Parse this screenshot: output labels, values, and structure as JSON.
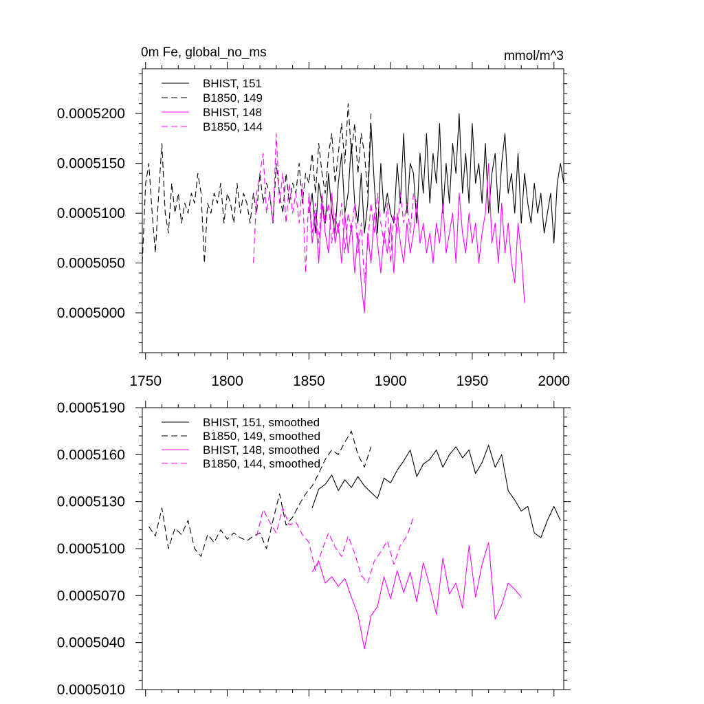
{
  "chart_data": [
    {
      "type": "line",
      "title_left": "0m Fe, global_no_ms",
      "title_right": "mmol/m^3",
      "xlim": [
        1748,
        2006
      ],
      "ylim": [
        0.000496,
        0.0005245
      ],
      "xticks": [
        1750,
        1800,
        1850,
        1900,
        1950,
        2000
      ],
      "xtick_labels": [
        "1750",
        "1800",
        "1850",
        "1900",
        "1950",
        "2000"
      ],
      "yticks": [
        0.0005,
        0.000505,
        0.00051,
        0.000515,
        0.00052
      ],
      "ytick_labels": [
        "0.0005000",
        "0.0005050",
        "0.0005100",
        "0.0005150",
        "0.0005200"
      ],
      "grid": false,
      "legend_position": "top-left",
      "series": [
        {
          "name": "BHIST, 151",
          "color": "#000000",
          "dash": "solid",
          "x": [
            1850,
            1852,
            1854,
            1856,
            1858,
            1860,
            1862,
            1864,
            1866,
            1868,
            1870,
            1872,
            1874,
            1876,
            1878,
            1880,
            1882,
            1884,
            1886,
            1888,
            1890,
            1892,
            1894,
            1896,
            1898,
            1900,
            1902,
            1904,
            1906,
            1908,
            1910,
            1912,
            1914,
            1916,
            1918,
            1920,
            1922,
            1924,
            1926,
            1928,
            1930,
            1932,
            1934,
            1936,
            1938,
            1940,
            1942,
            1944,
            1946,
            1948,
            1950,
            1952,
            1954,
            1956,
            1958,
            1960,
            1962,
            1964,
            1966,
            1968,
            1970,
            1972,
            1974,
            1976,
            1978,
            1980,
            1982,
            1984,
            1986,
            1988,
            1990,
            1992,
            1994,
            1996,
            1998,
            2000,
            2002,
            2004,
            2006
          ],
          "values": [
            0.00051,
            0.000512,
            0.000508,
            0.000513,
            0.000511,
            0.000509,
            0.000514,
            0.00051,
            0.000508,
            0.000513,
            0.000516,
            0.00051,
            0.000512,
            0.000517,
            0.000511,
            0.000509,
            0.000514,
            0.000508,
            0.000511,
            0.000519,
            0.000513,
            0.000508,
            0.000515,
            0.00051,
            0.000512,
            0.00051,
            0.000509,
            0.000515,
            0.000511,
            0.000518,
            0.00051,
            0.000515,
            0.000514,
            0.000509,
            0.000516,
            0.000512,
            0.000518,
            0.000511,
            0.000516,
            0.000513,
            0.000519,
            0.00051,
            0.000515,
            0.000511,
            0.000517,
            0.000514,
            0.00052,
            0.000512,
            0.000516,
            0.000511,
            0.000519,
            0.000513,
            0.000515,
            0.000511,
            0.000517,
            0.00051,
            0.000514,
            0.000516,
            0.00051,
            0.000515,
            0.000518,
            0.000512,
            0.000514,
            0.00051,
            0.000516,
            0.000509,
            0.000514,
            0.000511,
            0.000509,
            0.000513,
            0.00051,
            0.000512,
            0.000508,
            0.00051,
            0.000512,
            0.000507,
            0.000513,
            0.000515,
            0.000513
          ]
        },
        {
          "name": "B1850, 149",
          "color": "#000000",
          "dash": "dash",
          "x": [
            1748,
            1750,
            1752,
            1754,
            1756,
            1758,
            1760,
            1762,
            1764,
            1766,
            1768,
            1770,
            1772,
            1774,
            1776,
            1778,
            1780,
            1782,
            1784,
            1786,
            1788,
            1790,
            1792,
            1794,
            1796,
            1798,
            1800,
            1802,
            1804,
            1806,
            1808,
            1810,
            1812,
            1814,
            1816,
            1818,
            1820,
            1822,
            1824,
            1826,
            1828,
            1830,
            1832,
            1834,
            1836,
            1838,
            1840,
            1842,
            1844,
            1846,
            1848,
            1850,
            1852,
            1854,
            1856,
            1858,
            1860,
            1862,
            1864,
            1866,
            1868,
            1870,
            1872,
            1874,
            1876,
            1878,
            1880,
            1882,
            1884,
            1886,
            1888
          ],
          "values": [
            0.000505,
            0.000513,
            0.000515,
            0.00051,
            0.000506,
            0.000512,
            0.000517,
            0.00051,
            0.000508,
            0.000513,
            0.00051,
            0.000512,
            0.000509,
            0.000511,
            0.00051,
            0.000512,
            0.000511,
            0.000514,
            0.000512,
            0.000505,
            0.000511,
            0.00051,
            0.000512,
            0.000511,
            0.000513,
            0.000509,
            0.000512,
            0.000511,
            0.000509,
            0.000513,
            0.00051,
            0.000512,
            0.000511,
            0.000509,
            0.000512,
            0.00051,
            0.000514,
            0.000511,
            0.000513,
            0.000512,
            0.000509,
            0.000515,
            0.000512,
            0.00051,
            0.000514,
            0.000511,
            0.000513,
            0.000512,
            0.000515,
            0.000511,
            0.000514,
            0.000513,
            0.000516,
            0.000512,
            0.000517,
            0.000514,
            0.000512,
            0.000516,
            0.000518,
            0.000513,
            0.000516,
            0.000519,
            0.000515,
            0.000521,
            0.000516,
            0.000519,
            0.000514,
            0.000518,
            0.000516,
            0.000512,
            0.00052
          ]
        },
        {
          "name": "BHIST, 148",
          "color": "#ff00ff",
          "dash": "solid",
          "x": [
            1850,
            1852,
            1854,
            1856,
            1858,
            1860,
            1862,
            1864,
            1866,
            1868,
            1870,
            1872,
            1874,
            1876,
            1878,
            1880,
            1882,
            1884,
            1886,
            1888,
            1890,
            1892,
            1894,
            1896,
            1898,
            1900,
            1902,
            1904,
            1906,
            1908,
            1910,
            1912,
            1914,
            1916,
            1918,
            1920,
            1922,
            1924,
            1926,
            1928,
            1930,
            1932,
            1934,
            1936,
            1938,
            1940,
            1942,
            1944,
            1946,
            1948,
            1950,
            1952,
            1954,
            1956,
            1958,
            1960,
            1962,
            1964,
            1966,
            1968,
            1970,
            1972,
            1974,
            1976,
            1978,
            1980,
            1982
          ],
          "values": [
            0.000512,
            0.000507,
            0.00051,
            0.000505,
            0.000511,
            0.000508,
            0.000506,
            0.000512,
            0.000507,
            0.000509,
            0.000505,
            0.00051,
            0.000506,
            0.000509,
            0.000504,
            0.000508,
            0.000503,
            0.0005,
            0.000508,
            0.000505,
            0.00051,
            0.000507,
            0.000504,
            0.000508,
            0.000506,
            0.000509,
            0.000504,
            0.00051,
            0.000507,
            0.000505,
            0.000509,
            0.000506,
            0.000508,
            0.000511,
            0.000507,
            0.000509,
            0.000506,
            0.000508,
            0.000505,
            0.000509,
            0.000507,
            0.000511,
            0.000506,
            0.000508,
            0.00051,
            0.000505,
            0.000512,
            0.000508,
            0.000506,
            0.00051,
            0.000507,
            0.000509,
            0.000505,
            0.000508,
            0.00051,
            0.000515,
            0.000507,
            0.000509,
            0.000505,
            0.000511,
            0.000506,
            0.000509,
            0.000505,
            0.000503,
            0.000509,
            0.000506,
            0.000501
          ]
        },
        {
          "name": "B1850, 144",
          "color": "#ff00ff",
          "dash": "dash",
          "x": [
            1816,
            1818,
            1820,
            1822,
            1824,
            1826,
            1828,
            1830,
            1832,
            1834,
            1836,
            1838,
            1840,
            1842,
            1844,
            1846,
            1848,
            1850,
            1852,
            1854,
            1856,
            1858,
            1860,
            1862,
            1864,
            1866,
            1868,
            1870,
            1872,
            1874,
            1876,
            1878,
            1880,
            1882,
            1884,
            1886,
            1888,
            1890,
            1892,
            1894,
            1896,
            1898,
            1900,
            1902,
            1904,
            1906,
            1908,
            1910,
            1912,
            1914,
            1916
          ],
          "values": [
            0.000505,
            0.000512,
            0.000514,
            0.000516,
            0.00051,
            0.000512,
            0.000509,
            0.000518,
            0.000511,
            0.000514,
            0.000509,
            0.000513,
            0.00051,
            0.000512,
            0.000509,
            0.000513,
            0.000504,
            0.000512,
            0.000508,
            0.000511,
            0.000507,
            0.000512,
            0.000509,
            0.000511,
            0.000507,
            0.00051,
            0.000508,
            0.000511,
            0.000506,
            0.00051,
            0.000508,
            0.000511,
            0.000506,
            0.000509,
            0.000503,
            0.000507,
            0.000511,
            0.000508,
            0.000512,
            0.000509,
            0.000507,
            0.000511,
            0.000505,
            0.00051,
            0.000508,
            0.000512,
            0.000509,
            0.000511,
            0.000508,
            0.000512,
            0.000511
          ]
        }
      ]
    },
    {
      "type": "line",
      "xlim": [
        1748,
        2006
      ],
      "ylim": [
        0.000501,
        0.000519
      ],
      "xticks": [
        1750,
        1800,
        1850,
        1900,
        1950,
        2000
      ],
      "yticks": [
        0.000501,
        0.000504,
        0.000507,
        0.00051,
        0.000513,
        0.000516,
        0.000519
      ],
      "ytick_labels": [
        "0.0005010",
        "0.0005040",
        "0.0005070",
        "0.0005100",
        "0.0005130",
        "0.0005160",
        "0.0005190"
      ],
      "grid": false,
      "legend_position": "top-left",
      "series": [
        {
          "name": "BHIST, 151, smoothed",
          "color": "#000000",
          "dash": "solid",
          "x": [
            1852,
            1856,
            1860,
            1864,
            1868,
            1872,
            1876,
            1880,
            1884,
            1888,
            1892,
            1896,
            1900,
            1904,
            1908,
            1912,
            1916,
            1920,
            1924,
            1928,
            1932,
            1936,
            1940,
            1944,
            1948,
            1952,
            1956,
            1960,
            1964,
            1968,
            1972,
            1976,
            1980,
            1984,
            1988,
            1992,
            1996,
            2000,
            2004
          ],
          "values": [
            0.0005126,
            0.0005138,
            0.0005141,
            0.0005147,
            0.0005137,
            0.0005144,
            0.0005139,
            0.0005146,
            0.000514,
            0.0005136,
            0.0005132,
            0.0005145,
            0.0005142,
            0.000515,
            0.0005156,
            0.0005163,
            0.0005146,
            0.0005154,
            0.0005157,
            0.0005163,
            0.0005152,
            0.000516,
            0.0005165,
            0.0005158,
            0.0005163,
            0.0005148,
            0.0005155,
            0.0005166,
            0.0005152,
            0.000516,
            0.0005137,
            0.0005131,
            0.0005124,
            0.0005127,
            0.000511,
            0.0005107,
            0.0005118,
            0.0005127,
            0.0005118
          ]
        },
        {
          "name": "B1850, 149, smoothed",
          "color": "#000000",
          "dash": "dash",
          "x": [
            1752,
            1756,
            1760,
            1764,
            1768,
            1772,
            1776,
            1780,
            1784,
            1788,
            1792,
            1796,
            1800,
            1804,
            1808,
            1812,
            1816,
            1820,
            1824,
            1828,
            1832,
            1836,
            1840,
            1844,
            1848,
            1852,
            1856,
            1860,
            1864,
            1868,
            1872,
            1876,
            1880,
            1884,
            1888
          ],
          "values": [
            0.0005114,
            0.0005108,
            0.0005126,
            0.00051,
            0.0005113,
            0.0005109,
            0.0005118,
            0.00051,
            0.0005095,
            0.0005109,
            0.0005104,
            0.0005112,
            0.0005106,
            0.000511,
            0.0005107,
            0.0005105,
            0.0005108,
            0.000511,
            0.00051,
            0.0005118,
            0.0005135,
            0.0005115,
            0.000512,
            0.0005128,
            0.0005135,
            0.000514,
            0.0005148,
            0.0005157,
            0.0005163,
            0.000516,
            0.0005168,
            0.0005175,
            0.000516,
            0.0005152,
            0.0005165
          ]
        },
        {
          "name": "BHIST, 148, smoothed",
          "color": "#ff00ff",
          "dash": "solid",
          "x": [
            1852,
            1856,
            1860,
            1864,
            1868,
            1872,
            1876,
            1880,
            1884,
            1888,
            1892,
            1896,
            1900,
            1904,
            1908,
            1912,
            1916,
            1920,
            1924,
            1928,
            1932,
            1936,
            1940,
            1944,
            1948,
            1952,
            1956,
            1960,
            1964,
            1968,
            1972,
            1976,
            1980
          ],
          "values": [
            0.0005085,
            0.0005092,
            0.0005078,
            0.0005082,
            0.0005076,
            0.0005081,
            0.0005069,
            0.0005058,
            0.0005036,
            0.0005057,
            0.0005063,
            0.0005082,
            0.0005068,
            0.0005086,
            0.0005072,
            0.0005085,
            0.0005066,
            0.0005091,
            0.0005076,
            0.0005058,
            0.0005094,
            0.0005071,
            0.0005078,
            0.0005062,
            0.0005102,
            0.0005069,
            0.000509,
            0.0005104,
            0.0005055,
            0.0005064,
            0.0005078,
            0.0005074,
            0.0005069
          ]
        },
        {
          "name": "B1850, 144, smoothed",
          "color": "#ff00ff",
          "dash": "dash",
          "x": [
            1818,
            1822,
            1826,
            1830,
            1834,
            1838,
            1842,
            1846,
            1850,
            1854,
            1858,
            1862,
            1866,
            1870,
            1874,
            1878,
            1882,
            1886,
            1890,
            1894,
            1898,
            1902,
            1906,
            1910,
            1914
          ],
          "values": [
            0.0005108,
            0.0005125,
            0.0005117,
            0.000511,
            0.0005126,
            0.0005115,
            0.0005117,
            0.0005109,
            0.0005104,
            0.0005086,
            0.0005099,
            0.000511,
            0.0005101,
            0.0005095,
            0.0005108,
            0.0005097,
            0.0005083,
            0.0005078,
            0.0005092,
            0.0005098,
            0.0005105,
            0.000509,
            0.0005102,
            0.0005108,
            0.000512
          ]
        }
      ]
    }
  ]
}
